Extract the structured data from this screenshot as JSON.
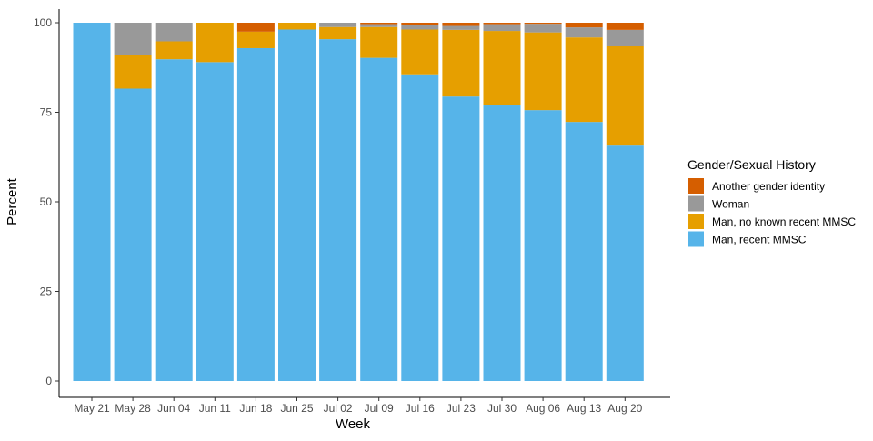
{
  "chart_data": {
    "type": "bar",
    "stacked": true,
    "xlabel": "Week",
    "ylabel": "Percent",
    "ylim": [
      0,
      100
    ],
    "yticks": [
      0,
      25,
      50,
      75,
      100
    ],
    "grid": false,
    "legend_position": "right",
    "legend_title": "Gender/Sexual History",
    "categories": [
      "May 21",
      "May 28",
      "Jun 04",
      "Jun 11",
      "Jun 18",
      "Jun 25",
      "Jul 02",
      "Jul 09",
      "Jul 16",
      "Jul 23",
      "Jul 30",
      "Aug 06",
      "Aug 13",
      "Aug 20"
    ],
    "series": [
      {
        "name": "Man, recent MMSC",
        "color": "#56B4E9",
        "values": [
          100,
          81.6,
          89.8,
          89.0,
          92.9,
          98.1,
          95.4,
          90.2,
          85.6,
          79.4,
          76.9,
          75.6,
          72.3,
          65.7
        ]
      },
      {
        "name": "Man, no known recent MMSC",
        "color": "#E69F00",
        "values": [
          0,
          9.5,
          5.0,
          11.0,
          4.6,
          1.9,
          3.4,
          8.6,
          12.5,
          18.6,
          20.8,
          21.7,
          23.6,
          27.7
        ]
      },
      {
        "name": "Woman",
        "color": "#999999",
        "values": [
          0,
          8.9,
          5.2,
          0,
          0,
          0,
          1.2,
          0.8,
          1.2,
          1.1,
          1.9,
          2.4,
          2.8,
          4.6
        ]
      },
      {
        "name": "Another gender identity",
        "color": "#D55E00",
        "values": [
          0,
          0,
          0,
          0,
          2.5,
          0,
          0,
          0.4,
          0.7,
          0.9,
          0.4,
          0.3,
          1.3,
          2.0
        ]
      }
    ]
  }
}
